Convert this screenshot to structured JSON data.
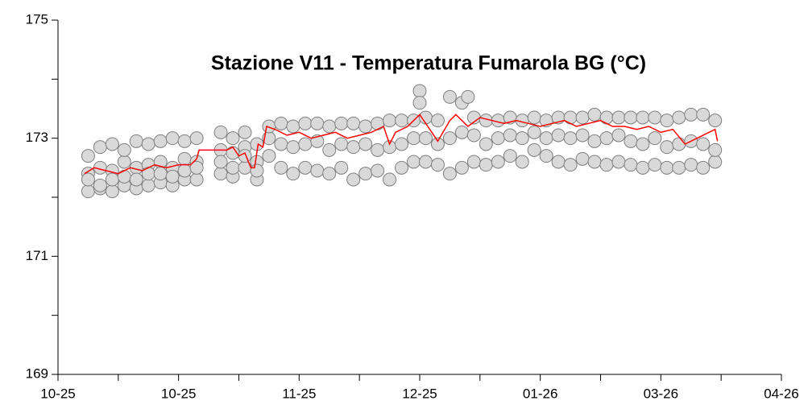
{
  "chart_data": {
    "type": "scatter",
    "title": "Stazione V11 - Temperatura Fumarola BG (°C)",
    "xlim": [
      0,
      6
    ],
    "xticks": [
      {
        "value": 0,
        "label": "10-25"
      },
      {
        "value": 1,
        "label": "10-25"
      },
      {
        "value": 2,
        "label": "11-25"
      },
      {
        "value": 3,
        "label": "12-25"
      },
      {
        "value": 4,
        "label": "01-26"
      },
      {
        "value": 5,
        "label": "03-26"
      },
      {
        "value": 6,
        "label": "04-26"
      }
    ],
    "xminorticks": [
      0.5,
      1.5,
      2.5,
      3.5,
      4.5,
      5.5
    ],
    "ylim": [
      169,
      175
    ],
    "yticks": [
      169,
      171,
      173,
      175
    ],
    "yminorticks": [
      170,
      172,
      174
    ],
    "series": [
      {
        "type": "scatter",
        "color": "#d9d9d9",
        "edgecolor": "#7f7f7f",
        "x": [
          0.25,
          0.25,
          0.25,
          0.25,
          0.35,
          0.35,
          0.35,
          0.35,
          0.45,
          0.45,
          0.45,
          0.45,
          0.55,
          0.55,
          0.55,
          0.55,
          0.65,
          0.65,
          0.65,
          0.65,
          0.75,
          0.75,
          0.75,
          0.75,
          0.85,
          0.85,
          0.85,
          0.85,
          0.95,
          0.95,
          0.95,
          0.95,
          1.05,
          1.05,
          1.05,
          1.05,
          1.15,
          1.15,
          1.15,
          1.15,
          1.35,
          1.35,
          1.35,
          1.35,
          1.45,
          1.45,
          1.45,
          1.45,
          1.55,
          1.55,
          1.55,
          1.55,
          1.65,
          1.65,
          1.65,
          1.65,
          1.75,
          1.75,
          1.75,
          1.85,
          1.85,
          1.85,
          1.95,
          1.95,
          1.95,
          2.05,
          2.05,
          2.05,
          2.15,
          2.15,
          2.15,
          2.25,
          2.25,
          2.25,
          2.35,
          2.35,
          2.35,
          2.45,
          2.45,
          2.45,
          2.55,
          2.55,
          2.55,
          2.65,
          2.65,
          2.65,
          2.75,
          2.75,
          2.75,
          2.85,
          2.85,
          2.85,
          2.95,
          2.95,
          2.95,
          3.0,
          3.0,
          3.05,
          3.05,
          3.05,
          3.15,
          3.15,
          3.15,
          3.25,
          3.25,
          3.25,
          3.35,
          3.35,
          3.35,
          3.4,
          3.45,
          3.45,
          3.45,
          3.55,
          3.55,
          3.55,
          3.65,
          3.65,
          3.65,
          3.75,
          3.75,
          3.75,
          3.85,
          3.85,
          3.85,
          3.95,
          3.95,
          3.95,
          4.05,
          4.05,
          4.05,
          4.15,
          4.15,
          4.15,
          4.25,
          4.25,
          4.25,
          4.35,
          4.35,
          4.35,
          4.45,
          4.45,
          4.45,
          4.55,
          4.55,
          4.55,
          4.65,
          4.65,
          4.65,
          4.75,
          4.75,
          4.75,
          4.85,
          4.85,
          4.85,
          4.95,
          4.95,
          4.95,
          5.05,
          5.05,
          5.05,
          5.15,
          5.15,
          5.15,
          5.25,
          5.25,
          5.25,
          5.35,
          5.35,
          5.35,
          5.45,
          5.45,
          5.45
        ],
        "values": [
          172.1,
          172.4,
          172.7,
          172.3,
          172.15,
          172.5,
          172.85,
          172.2,
          172.1,
          172.45,
          172.9,
          172.3,
          172.2,
          172.6,
          172.8,
          172.35,
          172.15,
          172.5,
          172.95,
          172.3,
          172.2,
          172.55,
          172.9,
          172.4,
          172.25,
          172.6,
          172.95,
          172.4,
          172.2,
          172.5,
          173.0,
          172.35,
          172.3,
          172.65,
          172.95,
          172.45,
          172.3,
          172.6,
          173.0,
          172.5,
          172.4,
          172.8,
          173.1,
          172.6,
          172.35,
          172.75,
          173.0,
          172.5,
          172.5,
          172.85,
          173.1,
          172.7,
          172.3,
          172.6,
          172.9,
          172.45,
          172.7,
          173.0,
          173.2,
          172.5,
          172.9,
          173.25,
          172.4,
          172.85,
          173.2,
          172.5,
          172.9,
          173.25,
          172.45,
          172.95,
          173.25,
          172.4,
          172.8,
          173.2,
          172.5,
          172.9,
          173.25,
          172.3,
          172.85,
          173.25,
          172.4,
          172.9,
          173.2,
          172.45,
          172.8,
          173.25,
          172.3,
          172.85,
          173.3,
          172.5,
          172.9,
          173.3,
          172.6,
          173.0,
          173.3,
          173.8,
          173.6,
          172.6,
          173.0,
          173.35,
          172.55,
          172.9,
          173.3,
          172.4,
          173.0,
          173.7,
          172.5,
          173.1,
          173.6,
          173.7,
          172.6,
          173.05,
          173.35,
          172.55,
          172.9,
          173.3,
          172.6,
          173.0,
          173.3,
          172.7,
          173.05,
          173.35,
          172.6,
          173.0,
          173.3,
          172.8,
          173.1,
          173.35,
          172.7,
          173.0,
          173.3,
          172.6,
          173.05,
          173.35,
          172.55,
          173.0,
          173.35,
          172.65,
          173.05,
          173.35,
          172.6,
          172.95,
          173.4,
          172.55,
          173.0,
          173.35,
          172.6,
          173.05,
          173.35,
          172.55,
          172.95,
          173.35,
          172.5,
          172.9,
          173.35,
          172.55,
          173.0,
          173.35,
          172.5,
          172.85,
          173.3,
          172.5,
          172.9,
          173.35,
          172.55,
          172.95,
          173.4,
          172.5,
          172.9,
          173.4,
          172.6,
          172.8,
          173.3
        ]
      },
      {
        "type": "line",
        "color": "#ff0000",
        "x": [
          0.22,
          0.3,
          0.4,
          0.5,
          0.6,
          0.7,
          0.8,
          0.9,
          1.0,
          1.1,
          1.15,
          1.17,
          1.4,
          1.45,
          1.5,
          1.55,
          1.6,
          1.63,
          1.66,
          1.7,
          1.73,
          1.8,
          1.9,
          2.0,
          2.1,
          2.2,
          2.3,
          2.4,
          2.5,
          2.6,
          2.7,
          2.75,
          2.8,
          2.9,
          3.0,
          3.1,
          3.15,
          3.25,
          3.3,
          3.4,
          3.5,
          3.6,
          3.7,
          3.8,
          3.9,
          4.0,
          4.1,
          4.2,
          4.3,
          4.4,
          4.5,
          4.6,
          4.7,
          4.8,
          4.9,
          5.0,
          5.1,
          5.2,
          5.3,
          5.4,
          5.45,
          5.47
        ],
        "values": [
          172.4,
          172.5,
          172.45,
          172.4,
          172.5,
          172.45,
          172.55,
          172.5,
          172.55,
          172.55,
          172.65,
          172.8,
          172.8,
          172.85,
          172.7,
          172.75,
          172.5,
          172.5,
          172.9,
          172.85,
          173.2,
          173.15,
          173.05,
          173.1,
          173.0,
          173.05,
          173.1,
          173.0,
          173.05,
          173.1,
          173.2,
          172.9,
          173.1,
          173.2,
          173.4,
          173.1,
          172.95,
          173.3,
          173.4,
          173.2,
          173.35,
          173.3,
          173.25,
          173.3,
          173.25,
          173.2,
          173.25,
          173.3,
          173.2,
          173.25,
          173.3,
          173.2,
          173.2,
          173.15,
          173.2,
          173.1,
          173.15,
          172.9,
          173.0,
          173.1,
          173.15,
          172.95
        ]
      }
    ]
  }
}
